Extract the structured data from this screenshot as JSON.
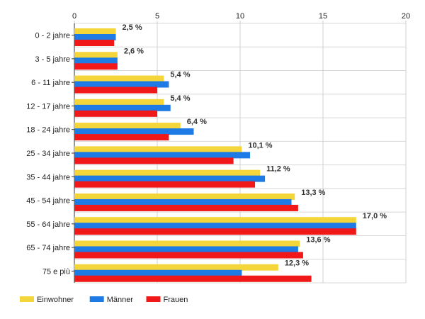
{
  "chart_data": {
    "type": "bar",
    "orientation": "horizontal",
    "categories": [
      "0 - 2 jahre",
      "3 - 5 jahre",
      "6 - 11 jahre",
      "12 - 17 jahre",
      "18 - 24 jahre",
      "25 - 34 jahre",
      "35 - 44 jahre",
      "45 - 54 jahre",
      "55 - 64 jahre",
      "65 - 74 jahre",
      "75 e più"
    ],
    "series": [
      {
        "name": "Einwohner",
        "color": "#f5d63a",
        "values": [
          2.5,
          2.6,
          5.4,
          5.4,
          6.4,
          10.1,
          11.2,
          13.3,
          17.0,
          13.6,
          12.3
        ]
      },
      {
        "name": "Männer",
        "color": "#1e7be6",
        "values": [
          2.5,
          2.6,
          5.7,
          5.8,
          7.2,
          10.6,
          11.5,
          13.1,
          17.0,
          13.5,
          10.1
        ]
      },
      {
        "name": "Frauen",
        "color": "#f01818",
        "values": [
          2.4,
          2.6,
          5.0,
          5.0,
          5.7,
          9.6,
          10.9,
          13.5,
          17.0,
          13.8,
          14.3
        ]
      }
    ],
    "data_labels": [
      "2,5 %",
      "2,6 %",
      "5,4 %",
      "5,4 %",
      "6,4 %",
      "10,1 %",
      "11,2 %",
      "13,3 %",
      "17,0 %",
      "13,6 %",
      "12,3 %"
    ],
    "x_ticks": [
      "0",
      "5",
      "10",
      "15",
      "20"
    ],
    "xlim": [
      0,
      20
    ],
    "grid": true,
    "legend_position": "bottom-left",
    "title": "",
    "xlabel": "",
    "ylabel": ""
  }
}
